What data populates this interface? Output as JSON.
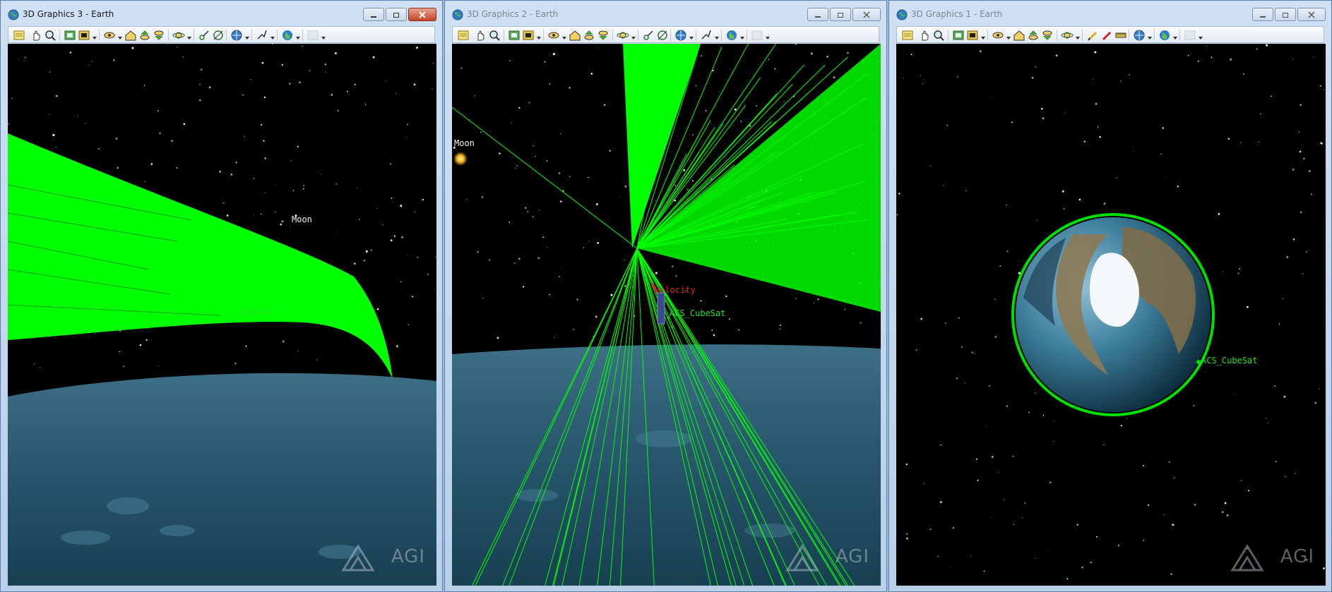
{
  "windows": [
    {
      "title": "3D Graphics 3 - Earth",
      "active": true,
      "labels": {
        "moon": "Moon",
        "satellite": "_CubeSat"
      },
      "logo": "AGI"
    },
    {
      "title": "3D Graphics 2 - Earth",
      "active": false,
      "labels": {
        "moon": "Moon",
        "satellite": "ACS_CubeSat",
        "velocity": "Velocity"
      },
      "logo": "AGI"
    },
    {
      "title": "3D Graphics 1 - Earth",
      "active": false,
      "labels": {
        "satellite": "ACS_CubeSat"
      },
      "logo": "AGI"
    }
  ],
  "icons": {
    "window": "globe-icon",
    "caption": [
      "minimize-icon",
      "restore-icon",
      "close-icon"
    ],
    "toolbar_w1": [
      "properties-icon",
      "pan-icon",
      "zoom-icon",
      "view-icon",
      "snapshot-icon",
      "view-from-icon",
      "home-view-icon",
      "top-view-icon",
      "bottom-view-icon",
      "orbit-view-icon",
      "measure-icon",
      "lighting-icon",
      "globe-manager-icon",
      "tools-icon",
      "map-icon",
      "record-icon"
    ],
    "toolbar_w3": [
      "properties-icon",
      "pan-icon",
      "zoom-icon",
      "view-icon",
      "snapshot-icon",
      "view-from-icon",
      "home-view-icon",
      "top-view-icon",
      "bottom-view-icon",
      "orbit-view-icon",
      "pencil-icon",
      "ruler-icon",
      "tape-icon",
      "globe-manager-icon",
      "map-icon",
      "record-icon"
    ]
  },
  "colors": {
    "sensor_green": "#00ff00",
    "earth_blue": "#2f5f78",
    "label_green": "#20e020",
    "velocity_red": "#e02020"
  }
}
